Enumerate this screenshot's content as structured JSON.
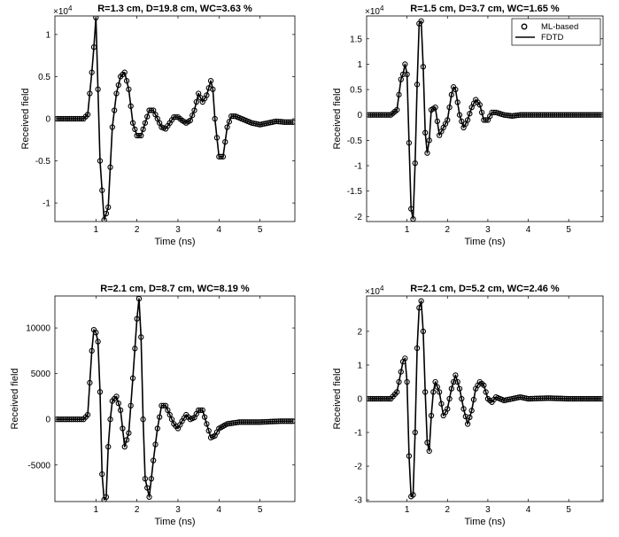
{
  "figure": {
    "colors": {
      "line": "#000000",
      "background": "#ffffff",
      "axes": "#000000"
    }
  },
  "chart_data": [
    {
      "type": "line",
      "title": "R=1.3 cm,  D=19.8 cm,  WC=3.63 %",
      "xlabel": "Time (ns)",
      "ylabel": "Received field",
      "exponent": "×10",
      "exponent_power": "4",
      "xlim": [
        0,
        5.85
      ],
      "ylim": [
        -1.22,
        1.22
      ],
      "xticks": [
        1,
        2,
        3,
        4,
        5
      ],
      "xtick_labels": [
        "1",
        "2",
        "3",
        "4",
        "5"
      ],
      "yticks": [
        -1,
        -0.5,
        0,
        0.5,
        1
      ],
      "ytick_labels": [
        "-1",
        "-0.5",
        "0",
        "0.5",
        "1"
      ],
      "series": [
        {
          "style": "line-and-markers",
          "x": [
            0.05,
            0.7,
            0.8,
            0.9,
            0.95,
            1.0,
            1.1,
            1.2,
            1.3,
            1.4,
            1.5,
            1.6,
            1.7,
            1.8,
            1.9,
            2.0,
            2.1,
            2.2,
            2.3,
            2.4,
            2.5,
            2.6,
            2.7,
            2.8,
            2.9,
            3.0,
            3.1,
            3.2,
            3.3,
            3.4,
            3.5,
            3.6,
            3.7,
            3.8,
            3.85,
            3.9,
            4.0,
            4.1,
            4.2,
            4.3,
            4.4,
            4.6,
            4.8,
            5.0,
            5.2,
            5.4,
            5.6,
            5.8
          ],
          "y": [
            0,
            0,
            0.05,
            0.55,
            0.85,
            1.2,
            -0.5,
            -1.2,
            -1.05,
            -0.1,
            0.3,
            0.5,
            0.55,
            0.35,
            -0.05,
            -0.2,
            -0.2,
            -0.05,
            0.1,
            0.1,
            0.0,
            -0.1,
            -0.12,
            -0.05,
            0.02,
            0.02,
            -0.02,
            -0.05,
            -0.02,
            0.1,
            0.3,
            0.2,
            0.28,
            0.45,
            0.35,
            0.0,
            -0.45,
            -0.45,
            -0.1,
            0.03,
            0.03,
            -0.01,
            -0.05,
            -0.07,
            -0.05,
            -0.03,
            -0.04,
            -0.04
          ]
        }
      ]
    },
    {
      "type": "line",
      "title": "R=1.5 cm,  D=3.7 cm,  WC=1.65 %",
      "xlabel": "Time (ns)",
      "ylabel": "Received field",
      "exponent": "×10",
      "exponent_power": "4",
      "xlim": [
        0,
        5.85
      ],
      "ylim": [
        -2.1,
        1.95
      ],
      "xticks": [
        1,
        2,
        3,
        4,
        5
      ],
      "xtick_labels": [
        "1",
        "2",
        "3",
        "4",
        "5"
      ],
      "yticks": [
        -2,
        -1.5,
        -1,
        -0.5,
        0,
        0.5,
        1,
        1.5
      ],
      "ytick_labels": [
        "-2",
        "-1.5",
        "-1",
        "-0.5",
        "0",
        "0.5",
        "1",
        "1.5"
      ],
      "legend": {
        "position": "top-right",
        "entries": [
          "ML-based",
          "FDTD"
        ]
      },
      "series": [
        {
          "name": "ML-based",
          "style": "markers",
          "x": [
            0.05,
            0.6,
            0.75,
            0.85,
            0.9,
            0.95,
            1.0,
            1.05,
            1.1,
            1.15,
            1.2,
            1.25,
            1.3,
            1.35,
            1.4,
            1.45,
            1.5,
            1.55,
            1.6,
            1.7,
            1.8,
            1.9,
            2.0,
            2.1,
            2.15,
            2.2,
            2.3,
            2.4,
            2.5,
            2.6,
            2.7,
            2.8,
            2.9,
            3.0,
            3.1,
            3.2,
            3.4,
            3.6,
            3.8,
            4.0,
            4.5,
            5.0,
            5.5,
            5.8
          ],
          "y": [
            0,
            0,
            0.1,
            0.7,
            0.8,
            1.0,
            0.8,
            -0.55,
            -1.85,
            -2.05,
            -0.95,
            0.6,
            1.8,
            1.85,
            0.95,
            -0.35,
            -0.75,
            -0.5,
            0.1,
            0.15,
            -0.4,
            -0.25,
            -0.1,
            0.4,
            0.55,
            0.5,
            0.0,
            -0.25,
            -0.1,
            0.15,
            0.3,
            0.2,
            -0.1,
            -0.1,
            0.05,
            0.05,
            0.0,
            -0.02,
            0.0,
            0.0,
            0.0,
            0.0,
            0.0,
            0.0
          ]
        },
        {
          "name": "FDTD",
          "style": "line",
          "x": [
            0.05,
            0.6,
            0.75,
            0.85,
            0.9,
            0.95,
            1.0,
            1.05,
            1.1,
            1.15,
            1.2,
            1.25,
            1.3,
            1.35,
            1.4,
            1.45,
            1.5,
            1.55,
            1.6,
            1.7,
            1.8,
            1.9,
            2.0,
            2.1,
            2.15,
            2.2,
            2.3,
            2.4,
            2.5,
            2.6,
            2.7,
            2.8,
            2.9,
            3.0,
            3.1,
            3.2,
            3.4,
            3.6,
            3.8,
            4.0,
            4.5,
            5.0,
            5.5,
            5.8
          ],
          "y": [
            0,
            0,
            0.1,
            0.7,
            0.8,
            1.0,
            0.8,
            -0.55,
            -1.85,
            -2.05,
            -0.95,
            0.6,
            1.8,
            1.85,
            0.95,
            -0.35,
            -0.75,
            -0.5,
            0.1,
            0.15,
            -0.4,
            -0.25,
            -0.1,
            0.4,
            0.55,
            0.5,
            0.0,
            -0.25,
            -0.1,
            0.15,
            0.3,
            0.2,
            -0.1,
            -0.1,
            0.05,
            0.05,
            0.0,
            -0.02,
            0.0,
            0.0,
            0.0,
            0.0,
            0.0,
            0.0
          ]
        }
      ]
    },
    {
      "type": "line",
      "title": "R=2.1 cm,  D=8.7 cm,  WC=8.19 %",
      "xlabel": "Time (ns)",
      "ylabel": "Received field",
      "exponent": "",
      "exponent_power": "",
      "xlim": [
        0,
        5.85
      ],
      "ylim": [
        -9000,
        13500
      ],
      "xticks": [
        1,
        2,
        3,
        4,
        5
      ],
      "xtick_labels": [
        "1",
        "2",
        "3",
        "4",
        "5"
      ],
      "yticks": [
        -5000,
        0,
        5000,
        10000
      ],
      "ytick_labels": [
        "-5000",
        "0",
        "5000",
        "10000"
      ],
      "series": [
        {
          "style": "line-and-markers",
          "x": [
            0.05,
            0.7,
            0.8,
            0.9,
            0.95,
            1.0,
            1.05,
            1.1,
            1.15,
            1.2,
            1.25,
            1.3,
            1.35,
            1.4,
            1.5,
            1.6,
            1.7,
            1.8,
            1.9,
            2.0,
            2.05,
            2.1,
            2.15,
            2.2,
            2.3,
            2.4,
            2.5,
            2.6,
            2.7,
            2.8,
            2.9,
            3.0,
            3.1,
            3.2,
            3.3,
            3.4,
            3.5,
            3.6,
            3.7,
            3.8,
            3.9,
            4.0,
            4.2,
            4.5,
            5.0,
            5.5,
            5.8
          ],
          "y": [
            0,
            0,
            500,
            7500,
            9800,
            9500,
            8500,
            3000,
            -6000,
            -8800,
            -8500,
            -3000,
            0,
            2000,
            2500,
            1000,
            -3000,
            -1500,
            4500,
            11000,
            13200,
            9000,
            0,
            -6500,
            -8500,
            -4500,
            -1000,
            1500,
            1500,
            500,
            -500,
            -1000,
            -200,
            500,
            0,
            200,
            1000,
            1000,
            -500,
            -2000,
            -1800,
            -1000,
            -500,
            -300,
            -300,
            -200,
            -200
          ]
        }
      ]
    },
    {
      "type": "line",
      "title": "R=2.1 cm,  D=5.2 cm,  WC=2.46 %",
      "xlabel": "Time (ns)",
      "ylabel": "Received field",
      "exponent": "×10",
      "exponent_power": "4",
      "xlim": [
        0,
        5.85
      ],
      "ylim": [
        -3.05,
        3.05
      ],
      "xticks": [
        1,
        2,
        3,
        4,
        5
      ],
      "xtick_labels": [
        "1",
        "2",
        "3",
        "4",
        "5"
      ],
      "yticks": [
        -3,
        -2,
        -1,
        0,
        1,
        2
      ],
      "ytick_labels": [
        "-3",
        "-2",
        "-1",
        "0",
        "1",
        "2"
      ],
      "series": [
        {
          "style": "line-and-markers",
          "x": [
            0.05,
            0.6,
            0.75,
            0.85,
            0.9,
            0.95,
            1.0,
            1.05,
            1.1,
            1.15,
            1.2,
            1.25,
            1.3,
            1.35,
            1.4,
            1.45,
            1.5,
            1.55,
            1.6,
            1.65,
            1.7,
            1.8,
            1.9,
            2.0,
            2.1,
            2.2,
            2.3,
            2.4,
            2.5,
            2.6,
            2.7,
            2.8,
            2.9,
            3.0,
            3.1,
            3.2,
            3.4,
            3.6,
            3.8,
            4.0,
            4.5,
            5.0,
            5.5,
            5.8
          ],
          "y": [
            0,
            0,
            0.2,
            0.8,
            1.1,
            1.2,
            0.5,
            -1.7,
            -2.9,
            -2.85,
            -1.0,
            1.5,
            2.7,
            2.9,
            2.0,
            0.2,
            -1.3,
            -1.55,
            -0.5,
            0.2,
            0.5,
            0.2,
            -0.5,
            -0.3,
            0.3,
            0.7,
            0.3,
            -0.3,
            -0.75,
            -0.35,
            0.3,
            0.5,
            0.4,
            0.0,
            -0.1,
            0.05,
            -0.05,
            0.0,
            0.05,
            0.0,
            0.02,
            0.0,
            0.0,
            0.0
          ]
        }
      ]
    }
  ]
}
